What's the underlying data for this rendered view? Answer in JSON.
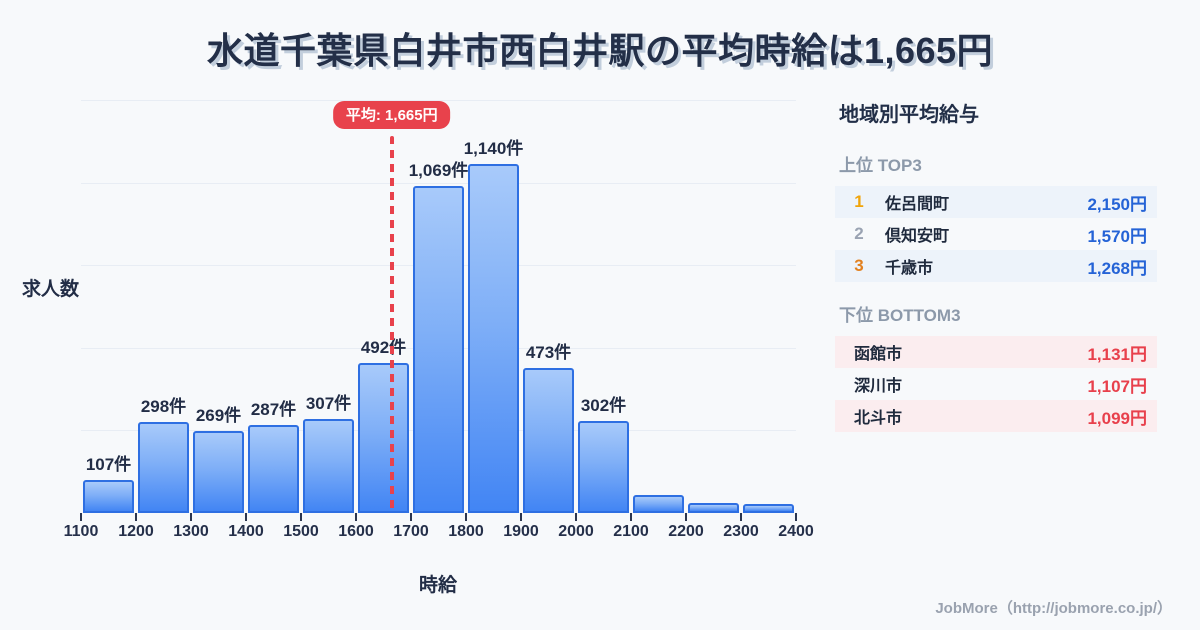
{
  "title": "水道千葉県白井市西白井駅の平均時給は1,665円",
  "colors": {
    "background": "#F7F9FB",
    "title_text": "#232F48",
    "accent_red": "#E8424C",
    "accent_blue": "#2563D6",
    "bar_fill_top": "#A8CAFA",
    "bar_fill_bottom": "#4285F4",
    "bar_border": "#2E6FE2",
    "grid_line": "#E8EDF4",
    "rank1_gold": "#F0A40A",
    "rank2_gray": "#9AA3B2",
    "rank3_bronze": "#E2801F",
    "top_row_bg": "#EDF3FA",
    "bottom_row_bg": "#FBEDEF",
    "muted_heading": "#8C99AA",
    "footer_text": "#9AA2AF"
  },
  "chart_data": {
    "type": "bar",
    "title": "水道千葉県白井市西白井駅の平均時給は1,665円",
    "xlabel": "時給",
    "ylabel": "求人数",
    "unit": "件",
    "bins": [
      "1100-1200",
      "1200-1300",
      "1300-1400",
      "1400-1500",
      "1500-1600",
      "1600-1700",
      "1700-1800",
      "1800-1900",
      "1900-2000",
      "2000-2100",
      "2100-2200",
      "2200-2300",
      "2300-2400"
    ],
    "values": [
      107,
      298,
      269,
      287,
      307,
      492,
      1069,
      1140,
      473,
      302,
      60,
      32,
      28
    ],
    "bar_labels": [
      "107件",
      "298件",
      "269件",
      "287件",
      "307件",
      "492件",
      "1,069件",
      "1,140件",
      "473件",
      "302件",
      "",
      "",
      ""
    ],
    "x_ticks": [
      "1100",
      "1200",
      "1300",
      "1400",
      "1500",
      "1600",
      "1700",
      "1800",
      "1900",
      "2000",
      "2100",
      "2200",
      "2300",
      "2400"
    ],
    "x_range": [
      1100,
      2400
    ],
    "ylim": [
      0,
      1350
    ],
    "grid": true,
    "legend": false,
    "average": {
      "value": 1665,
      "label": "平均: 1,665円"
    }
  },
  "sidebar": {
    "title": "地域別平均給与",
    "top3": {
      "heading": "上位 TOP3",
      "rows": [
        {
          "rank": "1",
          "name": "佐呂間町",
          "value": "2,150円"
        },
        {
          "rank": "2",
          "name": "倶知安町",
          "value": "1,570円"
        },
        {
          "rank": "3",
          "name": "千歳市",
          "value": "1,268円"
        }
      ]
    },
    "bottom3": {
      "heading": "下位 BOTTOM3",
      "rows": [
        {
          "name": "函館市",
          "value": "1,131円"
        },
        {
          "name": "深川市",
          "value": "1,107円"
        },
        {
          "name": "北斗市",
          "value": "1,099円"
        }
      ]
    }
  },
  "footer": {
    "credit": "JobMore（http://jobmore.co.jp/）"
  }
}
